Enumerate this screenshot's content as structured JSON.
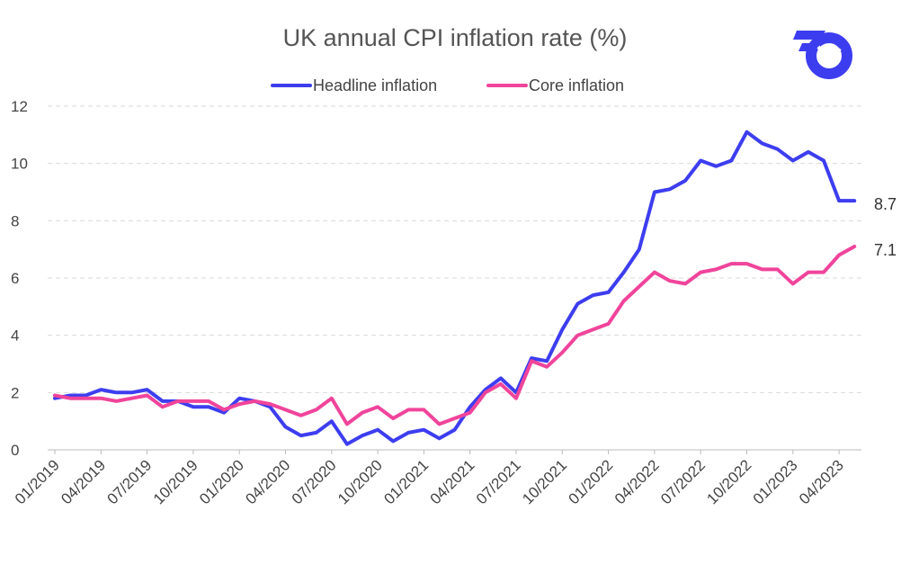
{
  "chart_data": {
    "type": "line",
    "title": "UK annual CPI inflation rate (%)",
    "xlabel": "",
    "ylabel": "",
    "ylim": [
      0,
      12
    ],
    "yticks": [
      0,
      2,
      4,
      6,
      8,
      10,
      12
    ],
    "grid": true,
    "legend_position": "top-center",
    "x": [
      "01/2019",
      "02/2019",
      "03/2019",
      "04/2019",
      "05/2019",
      "06/2019",
      "07/2019",
      "08/2019",
      "09/2019",
      "10/2019",
      "11/2019",
      "12/2019",
      "01/2020",
      "02/2020",
      "03/2020",
      "04/2020",
      "05/2020",
      "06/2020",
      "07/2020",
      "08/2020",
      "09/2020",
      "10/2020",
      "11/2020",
      "12/2020",
      "01/2021",
      "02/2021",
      "03/2021",
      "04/2021",
      "05/2021",
      "06/2021",
      "07/2021",
      "08/2021",
      "09/2021",
      "10/2021",
      "11/2021",
      "12/2021",
      "01/2022",
      "02/2022",
      "03/2022",
      "04/2022",
      "05/2022",
      "06/2022",
      "07/2022",
      "08/2022",
      "09/2022",
      "10/2022",
      "11/2022",
      "12/2022",
      "01/2023",
      "02/2023",
      "03/2023",
      "04/2023",
      "05/2023"
    ],
    "x_tick_labels": [
      "01/2019",
      "04/2019",
      "07/2019",
      "10/2019",
      "01/2020",
      "04/2020",
      "07/2020",
      "10/2020",
      "01/2021",
      "04/2021",
      "07/2021",
      "10/2021",
      "01/2022",
      "04/2022",
      "07/2022",
      "10/2022",
      "01/2023",
      "04/2023"
    ],
    "series": [
      {
        "name": "Headline inflation",
        "color": "#3d3df0",
        "end_label": "8.7",
        "values": [
          1.8,
          1.9,
          1.9,
          2.1,
          2.0,
          2.0,
          2.1,
          1.7,
          1.7,
          1.5,
          1.5,
          1.3,
          1.8,
          1.7,
          1.5,
          0.8,
          0.5,
          0.6,
          1.0,
          0.2,
          0.5,
          0.7,
          0.3,
          0.6,
          0.7,
          0.4,
          0.7,
          1.5,
          2.1,
          2.5,
          2.0,
          3.2,
          3.1,
          4.2,
          5.1,
          5.4,
          5.5,
          6.2,
          7.0,
          9.0,
          9.1,
          9.4,
          10.1,
          9.9,
          10.1,
          11.1,
          10.7,
          10.5,
          10.1,
          10.4,
          10.1,
          8.7,
          8.7
        ]
      },
      {
        "name": "Core inflation",
        "color": "#f0449b",
        "end_label": "7.1",
        "values": [
          1.9,
          1.8,
          1.8,
          1.8,
          1.7,
          1.8,
          1.9,
          1.5,
          1.7,
          1.7,
          1.7,
          1.4,
          1.6,
          1.7,
          1.6,
          1.4,
          1.2,
          1.4,
          1.8,
          0.9,
          1.3,
          1.5,
          1.1,
          1.4,
          1.4,
          0.9,
          1.1,
          1.3,
          2.0,
          2.3,
          1.8,
          3.1,
          2.9,
          3.4,
          4.0,
          4.2,
          4.4,
          5.2,
          5.7,
          6.2,
          5.9,
          5.8,
          6.2,
          6.3,
          6.5,
          6.5,
          6.3,
          6.3,
          5.8,
          6.2,
          6.2,
          6.8,
          7.1
        ]
      }
    ]
  },
  "logo": {
    "name": "brand-logo",
    "color": "#3d3df0"
  }
}
